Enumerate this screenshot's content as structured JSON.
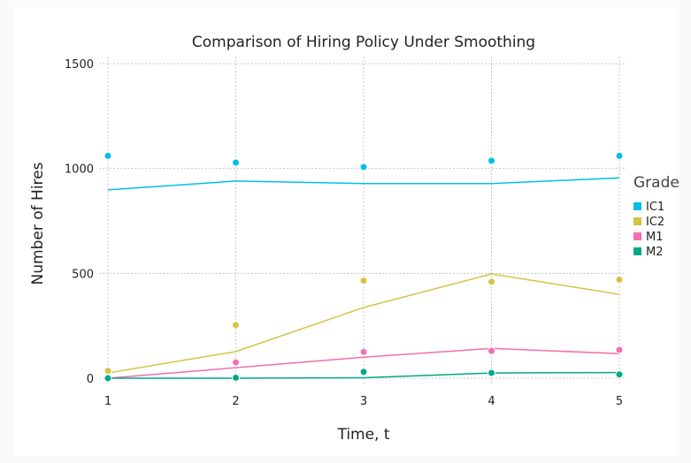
{
  "chart_data": {
    "type": "line",
    "title": "Comparison of Hiring Policy Under Smoothing",
    "xlabel": "Time, t",
    "ylabel": "Number of Hires",
    "x": [
      1,
      2,
      3,
      4,
      5
    ],
    "xlim": [
      1,
      5
    ],
    "ylim": [
      0,
      1500
    ],
    "yticks": [
      0,
      500,
      1000,
      1500
    ],
    "grid": true,
    "legend": {
      "title": "Grade",
      "placement": "right"
    },
    "series": [
      {
        "name": "IC1",
        "color": "#00BFEA",
        "line": [
          898,
          940,
          928,
          928,
          955
        ],
        "points": [
          1060,
          1028,
          1007,
          1037,
          1060
        ]
      },
      {
        "name": "IC2",
        "color": "#D4C443",
        "line": [
          25,
          127,
          337,
          497,
          400
        ],
        "points": [
          35,
          253,
          465,
          460,
          470
        ]
      },
      {
        "name": "M1",
        "color": "#F46EB0",
        "line": [
          0,
          50,
          100,
          142,
          117
        ],
        "points": [
          2,
          75,
          125,
          130,
          135
        ]
      },
      {
        "name": "M2",
        "color": "#00A88A",
        "line": [
          0,
          0,
          2,
          25,
          27
        ],
        "points": [
          0,
          2,
          30,
          25,
          18
        ]
      }
    ]
  }
}
